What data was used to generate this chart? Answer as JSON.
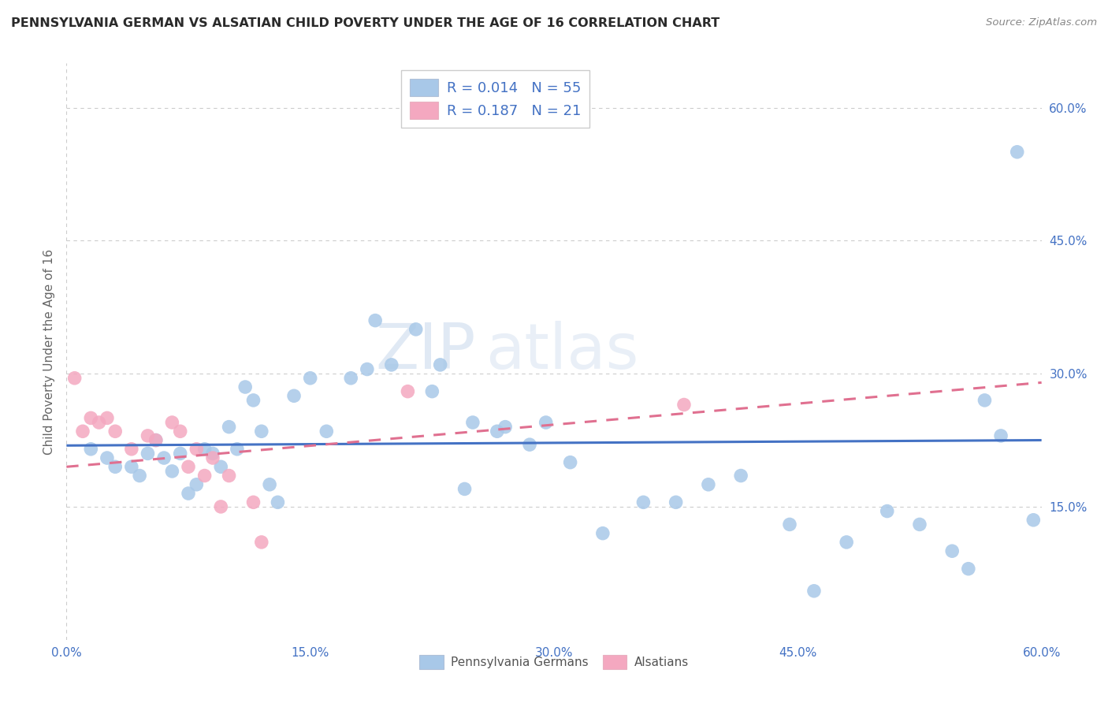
{
  "title": "PENNSYLVANIA GERMAN VS ALSATIAN CHILD POVERTY UNDER THE AGE OF 16 CORRELATION CHART",
  "source": "Source: ZipAtlas.com",
  "ylabel": "Child Poverty Under the Age of 16",
  "xlim": [
    0.0,
    0.6
  ],
  "ylim": [
    0.0,
    0.65
  ],
  "xtick_labels": [
    "0.0%",
    "15.0%",
    "30.0%",
    "45.0%",
    "60.0%"
  ],
  "xtick_vals": [
    0.0,
    0.15,
    0.3,
    0.45,
    0.6
  ],
  "ytick_labels": [
    "15.0%",
    "30.0%",
    "45.0%",
    "60.0%"
  ],
  "ytick_vals": [
    0.15,
    0.3,
    0.45,
    0.6
  ],
  "pg_R": "0.014",
  "pg_N": "55",
  "al_R": "0.187",
  "al_N": "21",
  "pg_color": "#a8c8e8",
  "al_color": "#f4a8c0",
  "pg_line_color": "#4472c4",
  "al_line_color": "#e07090",
  "watermark_zip": "ZIP",
  "watermark_atlas": "atlas",
  "pg_scatter_x": [
    0.015,
    0.025,
    0.03,
    0.04,
    0.045,
    0.05,
    0.055,
    0.06,
    0.065,
    0.07,
    0.075,
    0.08,
    0.085,
    0.09,
    0.095,
    0.1,
    0.105,
    0.11,
    0.115,
    0.12,
    0.125,
    0.13,
    0.14,
    0.15,
    0.16,
    0.175,
    0.185,
    0.19,
    0.2,
    0.215,
    0.225,
    0.23,
    0.245,
    0.25,
    0.265,
    0.27,
    0.285,
    0.295,
    0.31,
    0.33,
    0.355,
    0.375,
    0.395,
    0.415,
    0.445,
    0.46,
    0.48,
    0.505,
    0.525,
    0.545,
    0.555,
    0.565,
    0.575,
    0.585,
    0.595
  ],
  "pg_scatter_y": [
    0.215,
    0.205,
    0.195,
    0.195,
    0.185,
    0.21,
    0.225,
    0.205,
    0.19,
    0.21,
    0.165,
    0.175,
    0.215,
    0.21,
    0.195,
    0.24,
    0.215,
    0.285,
    0.27,
    0.235,
    0.175,
    0.155,
    0.275,
    0.295,
    0.235,
    0.295,
    0.305,
    0.36,
    0.31,
    0.35,
    0.28,
    0.31,
    0.17,
    0.245,
    0.235,
    0.24,
    0.22,
    0.245,
    0.2,
    0.12,
    0.155,
    0.155,
    0.175,
    0.185,
    0.13,
    0.055,
    0.11,
    0.145,
    0.13,
    0.1,
    0.08,
    0.27,
    0.23,
    0.55,
    0.135
  ],
  "al_scatter_x": [
    0.005,
    0.01,
    0.015,
    0.02,
    0.025,
    0.03,
    0.04,
    0.05,
    0.055,
    0.065,
    0.07,
    0.075,
    0.08,
    0.085,
    0.09,
    0.095,
    0.1,
    0.115,
    0.12,
    0.21,
    0.38
  ],
  "al_scatter_y": [
    0.295,
    0.235,
    0.25,
    0.245,
    0.25,
    0.235,
    0.215,
    0.23,
    0.225,
    0.245,
    0.235,
    0.195,
    0.215,
    0.185,
    0.205,
    0.15,
    0.185,
    0.155,
    0.11,
    0.28,
    0.265
  ],
  "pg_trendline_x": [
    0.0,
    0.6
  ],
  "pg_trendline_y": [
    0.219,
    0.225
  ],
  "al_trendline_x": [
    0.0,
    0.6
  ],
  "al_trendline_y": [
    0.195,
    0.29
  ],
  "grid_color": "#cccccc",
  "background_color": "#ffffff",
  "legend_color_blue": "#a8c8e8",
  "legend_color_pink": "#f4a8c0",
  "legend_text_color": "#4472c4",
  "bottom_text_color": "#555555"
}
